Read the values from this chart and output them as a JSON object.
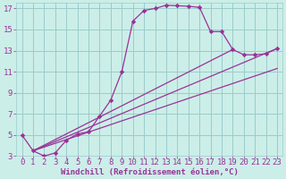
{
  "xlabel": "Windchill (Refroidissement éolien,°C)",
  "bg_color": "#cceee8",
  "grid_color": "#99cccc",
  "line_color": "#993399",
  "xlim": [
    -0.5,
    23.5
  ],
  "ylim": [
    3,
    17.5
  ],
  "xticks": [
    0,
    1,
    2,
    3,
    4,
    5,
    6,
    7,
    8,
    9,
    10,
    11,
    12,
    13,
    14,
    15,
    16,
    17,
    18,
    19,
    20,
    21,
    22,
    23
  ],
  "yticks": [
    3,
    5,
    7,
    9,
    11,
    13,
    15,
    17
  ],
  "curve_x": [
    0,
    1,
    2,
    3,
    4,
    5,
    6,
    7,
    8,
    9,
    10,
    11,
    12,
    13,
    14,
    15,
    16,
    17,
    18,
    19,
    20,
    21,
    22,
    23
  ],
  "curve_y": [
    5.0,
    3.5,
    3.0,
    3.3,
    4.5,
    5.1,
    5.3,
    6.8,
    8.3,
    11.0,
    15.8,
    16.8,
    17.0,
    17.3,
    17.25,
    17.2,
    17.1,
    14.8,
    14.8,
    13.1,
    12.6,
    12.6,
    12.7,
    13.2
  ],
  "line1_x": [
    1,
    23
  ],
  "line1_y": [
    3.5,
    13.2
  ],
  "line2_x": [
    1,
    19
  ],
  "line2_y": [
    3.5,
    13.1
  ],
  "line3_x": [
    1,
    23
  ],
  "line3_y": [
    3.5,
    11.3
  ],
  "fontsize_xlabel": 6.5,
  "fontsize_ticks": 6.5
}
